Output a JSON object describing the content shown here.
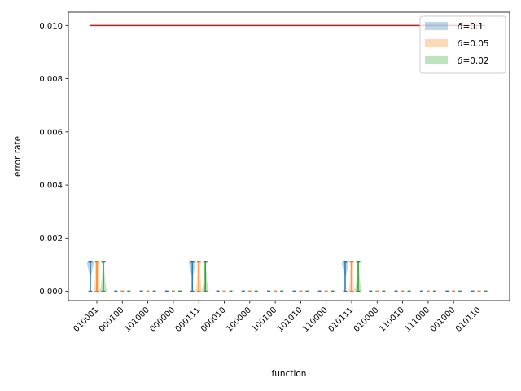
{
  "chart_data": {
    "type": "violin",
    "xlabel": "function",
    "ylabel": "error rate",
    "ylim": [
      -0.00035,
      0.0105
    ],
    "yticks": [
      "0.000",
      "0.002",
      "0.004",
      "0.006",
      "0.008",
      "0.010"
    ],
    "ytick_values": [
      0,
      0.002,
      0.004,
      0.006,
      0.008,
      0.01
    ],
    "categories": [
      "010001",
      "000100",
      "101000",
      "000000",
      "000111",
      "000010",
      "100000",
      "100100",
      "101010",
      "110000",
      "010111",
      "010000",
      "110010",
      "111000",
      "001000",
      "010110"
    ],
    "threshold": {
      "value": 0.01,
      "color": "#ff0000"
    },
    "legend_position": "top-right",
    "series": [
      {
        "name": "δ=0.1",
        "legend_symbol": "δ",
        "legend_value": "=0.1",
        "color": "#1f77b4",
        "max": [
          0.0011,
          0,
          0,
          0,
          0.0011,
          0,
          0,
          0,
          0,
          0,
          0.0011,
          0,
          0,
          0,
          0,
          0
        ]
      },
      {
        "name": "δ=0.05",
        "legend_symbol": "δ",
        "legend_value": "=0.05",
        "color": "#ff7f0e",
        "max": [
          0.0011,
          0,
          0,
          0,
          0.0011,
          0,
          0,
          0,
          0,
          0,
          0.0011,
          0,
          0,
          0,
          0,
          0
        ]
      },
      {
        "name": "δ=0.02",
        "legend_symbol": "δ",
        "legend_value": "=0.02",
        "color": "#2ca02c",
        "max": [
          0.0011,
          0,
          0,
          0,
          0.0011,
          0,
          0,
          0,
          0,
          0,
          0.0011,
          0,
          0,
          0,
          0,
          0
        ]
      }
    ]
  }
}
